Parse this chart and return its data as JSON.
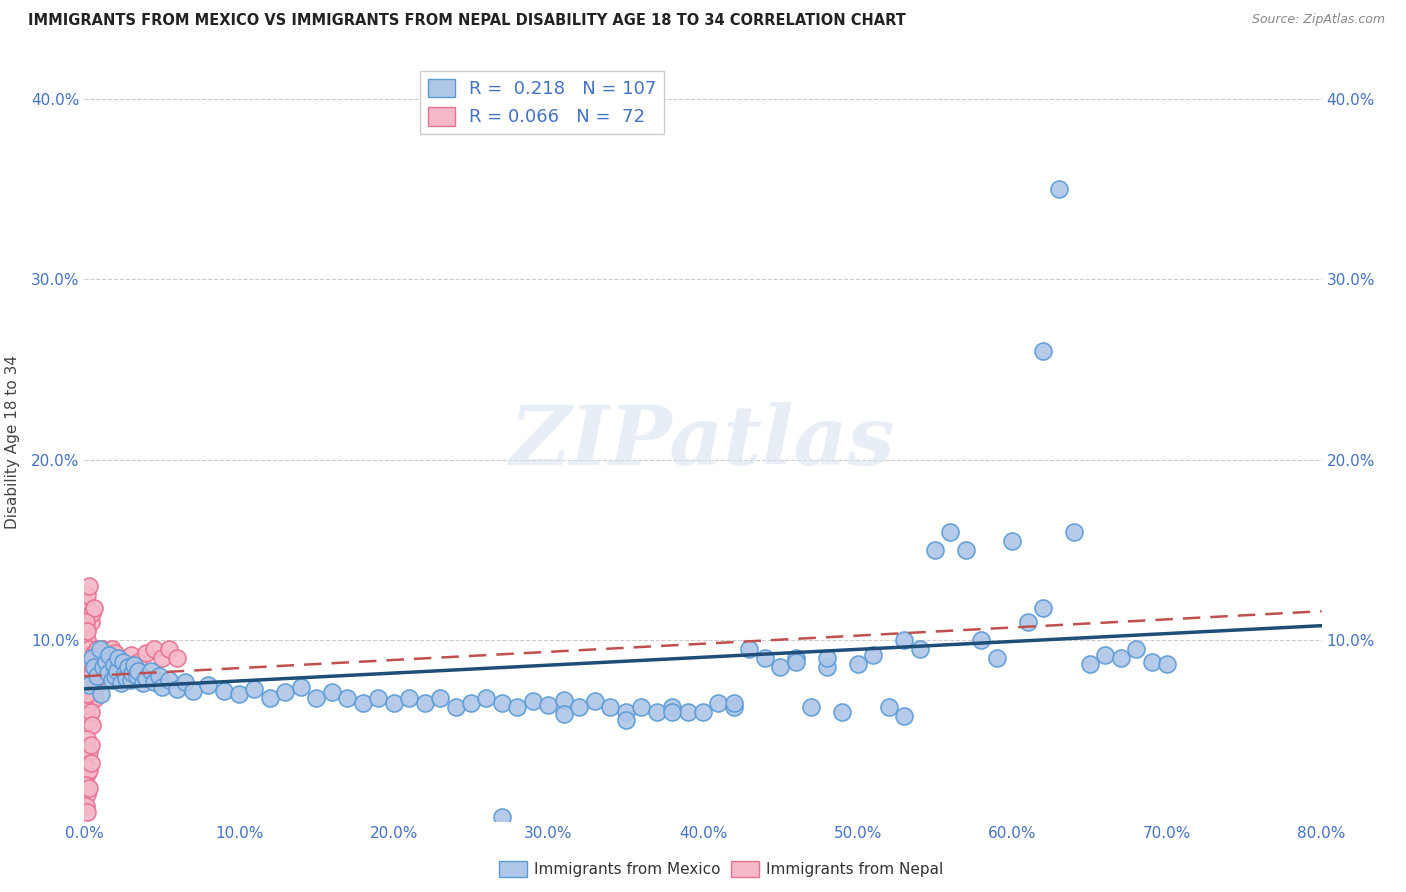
{
  "title": "IMMIGRANTS FROM MEXICO VS IMMIGRANTS FROM NEPAL DISABILITY AGE 18 TO 34 CORRELATION CHART",
  "source": "Source: ZipAtlas.com",
  "ylabel": "Disability Age 18 to 34",
  "xlim": [
    0.0,
    0.8
  ],
  "ylim": [
    0.0,
    0.42
  ],
  "xtick_vals": [
    0.0,
    0.1,
    0.2,
    0.3,
    0.4,
    0.5,
    0.6,
    0.7,
    0.8
  ],
  "ytick_vals": [
    0.0,
    0.1,
    0.2,
    0.3,
    0.4
  ],
  "ytick_labels": [
    "",
    "10.0%",
    "20.0%",
    "30.0%",
    "40.0%"
  ],
  "xtick_labels": [
    "0.0%",
    "10.0%",
    "20.0%",
    "30.0%",
    "40.0%",
    "50.0%",
    "60.0%",
    "70.0%",
    "80.0%"
  ],
  "mexico_color": "#aec6e8",
  "mexico_edge_color": "#5b9bd5",
  "nepal_color": "#f4b8c8",
  "nepal_edge_color": "#e87090",
  "trend_mexico_color": "#1f4e79",
  "trend_nepal_color": "#c0504d",
  "R_mexico": 0.218,
  "N_mexico": 107,
  "R_nepal": 0.066,
  "N_nepal": 72,
  "watermark": "ZIPatlas",
  "legend_label_mexico": "Immigrants from Mexico",
  "legend_label_nepal": "Immigrants from Nepal",
  "mexico_x": [
    0.003,
    0.005,
    0.006,
    0.008,
    0.01,
    0.011,
    0.012,
    0.014,
    0.015,
    0.016,
    0.018,
    0.019,
    0.02,
    0.021,
    0.022,
    0.024,
    0.025,
    0.026,
    0.027,
    0.028,
    0.03,
    0.031,
    0.032,
    0.034,
    0.035,
    0.038,
    0.04,
    0.043,
    0.045,
    0.048,
    0.05,
    0.055,
    0.06,
    0.065,
    0.07,
    0.08,
    0.09,
    0.1,
    0.11,
    0.12,
    0.13,
    0.14,
    0.15,
    0.16,
    0.17,
    0.18,
    0.19,
    0.2,
    0.21,
    0.22,
    0.23,
    0.24,
    0.25,
    0.26,
    0.27,
    0.28,
    0.29,
    0.3,
    0.31,
    0.32,
    0.33,
    0.34,
    0.35,
    0.36,
    0.37,
    0.38,
    0.39,
    0.4,
    0.41,
    0.42,
    0.43,
    0.44,
    0.45,
    0.46,
    0.47,
    0.48,
    0.49,
    0.5,
    0.51,
    0.52,
    0.53,
    0.54,
    0.55,
    0.56,
    0.57,
    0.58,
    0.59,
    0.6,
    0.61,
    0.62,
    0.63,
    0.64,
    0.65,
    0.66,
    0.67,
    0.68,
    0.69,
    0.7,
    0.62,
    0.53,
    0.48,
    0.46,
    0.42,
    0.38,
    0.35,
    0.31,
    0.27
  ],
  "mexico_y": [
    0.075,
    0.09,
    0.085,
    0.08,
    0.095,
    0.07,
    0.085,
    0.088,
    0.082,
    0.092,
    0.078,
    0.086,
    0.08,
    0.083,
    0.09,
    0.076,
    0.088,
    0.082,
    0.079,
    0.085,
    0.078,
    0.082,
    0.086,
    0.08,
    0.083,
    0.076,
    0.079,
    0.083,
    0.077,
    0.08,
    0.074,
    0.078,
    0.073,
    0.077,
    0.072,
    0.075,
    0.072,
    0.07,
    0.073,
    0.068,
    0.071,
    0.074,
    0.068,
    0.071,
    0.068,
    0.065,
    0.068,
    0.065,
    0.068,
    0.065,
    0.068,
    0.063,
    0.065,
    0.068,
    0.065,
    0.063,
    0.066,
    0.064,
    0.067,
    0.063,
    0.066,
    0.063,
    0.06,
    0.063,
    0.06,
    0.063,
    0.06,
    0.06,
    0.065,
    0.063,
    0.095,
    0.09,
    0.085,
    0.09,
    0.063,
    0.085,
    0.06,
    0.087,
    0.092,
    0.063,
    0.058,
    0.095,
    0.15,
    0.16,
    0.15,
    0.1,
    0.09,
    0.155,
    0.11,
    0.26,
    0.35,
    0.16,
    0.087,
    0.092,
    0.09,
    0.095,
    0.088,
    0.087,
    0.118,
    0.1,
    0.09,
    0.088,
    0.065,
    0.06,
    0.056,
    0.059,
    0.002
  ],
  "nepal_x": [
    0.001,
    0.002,
    0.003,
    0.004,
    0.005,
    0.006,
    0.007,
    0.008,
    0.009,
    0.01,
    0.011,
    0.012,
    0.001,
    0.002,
    0.003,
    0.004,
    0.005,
    0.006,
    0.007,
    0.008,
    0.009,
    0.001,
    0.002,
    0.003,
    0.004,
    0.005,
    0.006,
    0.001,
    0.002,
    0.003,
    0.004,
    0.005,
    0.001,
    0.002,
    0.003,
    0.004,
    0.001,
    0.002,
    0.003,
    0.004,
    0.001,
    0.002,
    0.003,
    0.001,
    0.002,
    0.001,
    0.002,
    0.001,
    0.002,
    0.001,
    0.002,
    0.003,
    0.004,
    0.005,
    0.006,
    0.007,
    0.008,
    0.009,
    0.01,
    0.011,
    0.012,
    0.015,
    0.018,
    0.02,
    0.025,
    0.03,
    0.035,
    0.04,
    0.045,
    0.05,
    0.055,
    0.06
  ],
  "nepal_y": [
    0.088,
    0.082,
    0.095,
    0.09,
    0.085,
    0.08,
    0.088,
    0.092,
    0.086,
    0.08,
    0.085,
    0.09,
    0.075,
    0.07,
    0.065,
    0.07,
    0.078,
    0.073,
    0.068,
    0.08,
    0.083,
    0.12,
    0.125,
    0.13,
    0.11,
    0.115,
    0.118,
    0.062,
    0.058,
    0.055,
    0.06,
    0.053,
    0.04,
    0.045,
    0.038,
    0.042,
    0.03,
    0.026,
    0.028,
    0.032,
    0.02,
    0.015,
    0.018,
    0.105,
    0.1,
    0.008,
    0.005,
    0.078,
    0.07,
    0.11,
    0.105,
    0.095,
    0.088,
    0.082,
    0.093,
    0.09,
    0.095,
    0.09,
    0.088,
    0.093,
    0.095,
    0.09,
    0.095,
    0.093,
    0.088,
    0.092,
    0.088,
    0.093,
    0.095,
    0.09,
    0.095,
    0.09
  ]
}
